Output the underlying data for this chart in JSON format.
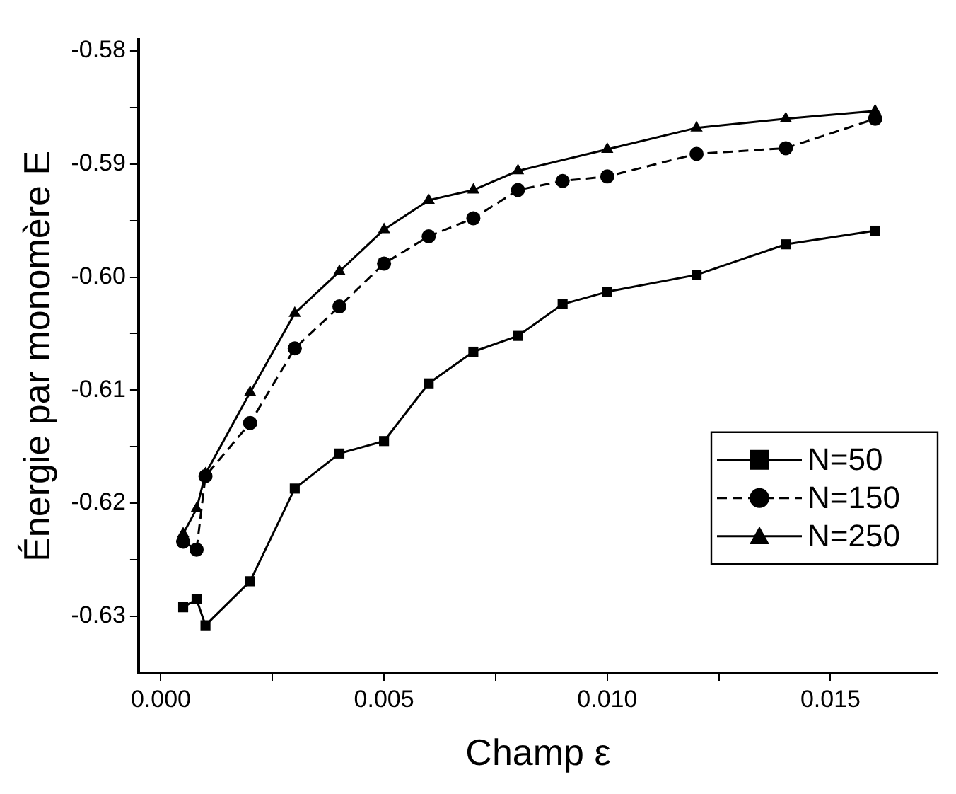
{
  "chart_data": {
    "type": "line",
    "xlabel": "Champ ε",
    "ylabel": "Énergie par monomère E",
    "xlim": [
      -0.0005,
      0.0174
    ],
    "xticks": [
      {
        "value": 0,
        "label": "0.000"
      },
      {
        "value": 0.0025,
        "label": null
      },
      {
        "value": 0.005,
        "label": "0.005"
      },
      {
        "value": 0.0075,
        "label": null
      },
      {
        "value": 0.01,
        "label": "0.010"
      },
      {
        "value": 0.0125,
        "label": null
      },
      {
        "value": 0.015,
        "label": "0.015"
      }
    ],
    "ylim": [
      -0.635,
      -0.579
    ],
    "yticks": [
      {
        "value": -0.63,
        "label": "-0.63"
      },
      {
        "value": -0.625,
        "label": null
      },
      {
        "value": -0.62,
        "label": "-0.62"
      },
      {
        "value": -0.615,
        "label": null
      },
      {
        "value": -0.61,
        "label": "-0.61"
      },
      {
        "value": -0.605,
        "label": null
      },
      {
        "value": -0.6,
        "label": "-0.60"
      },
      {
        "value": -0.595,
        "label": null
      },
      {
        "value": -0.59,
        "label": "-0.59"
      },
      {
        "value": -0.585,
        "label": null
      },
      {
        "value": -0.58,
        "label": "-0.58"
      }
    ],
    "grid": false,
    "legend": "right",
    "series": [
      {
        "name": "N=50",
        "color": "#000000",
        "marker": "square",
        "line_style": "solid",
        "x": [
          0.0005,
          0.0008,
          0.001,
          0.002,
          0.003,
          0.004,
          0.005,
          0.006,
          0.007,
          0.008,
          0.009,
          0.01,
          0.012,
          0.014,
          0.016
        ],
        "values": [
          -0.6292,
          -0.6285,
          -0.6308,
          -0.6269,
          -0.6187,
          -0.6156,
          -0.6145,
          -0.6094,
          -0.6066,
          -0.6052,
          -0.6024,
          -0.6013,
          -0.5998,
          -0.5971,
          -0.5959
        ]
      },
      {
        "name": "N=150",
        "color": "#000000",
        "marker": "circle",
        "line_style": "dashed",
        "x": [
          0.0005,
          0.0008,
          0.001,
          0.002,
          0.003,
          0.004,
          0.005,
          0.006,
          0.007,
          0.008,
          0.009,
          0.01,
          0.012,
          0.014,
          0.016
        ],
        "values": [
          -0.6234,
          -0.6241,
          -0.6176,
          -0.6129,
          -0.6063,
          -0.6026,
          -0.5988,
          -0.5964,
          -0.5948,
          -0.5923,
          -0.5915,
          -0.5911,
          -0.5891,
          -0.5886,
          -0.586
        ]
      },
      {
        "name": "N=250",
        "color": "#000000",
        "marker": "triangle",
        "line_style": "solid",
        "x": [
          0.0005,
          0.0008,
          0.001,
          0.002,
          0.003,
          0.004,
          0.005,
          0.006,
          0.007,
          0.008,
          0.01,
          0.012,
          0.014,
          0.016
        ],
        "values": [
          -0.6227,
          -0.6205,
          -0.6174,
          -0.6102,
          -0.6032,
          -0.5995,
          -0.5958,
          -0.5932,
          -0.5923,
          -0.5906,
          -0.5887,
          -0.5868,
          -0.586,
          -0.5853
        ]
      }
    ]
  }
}
